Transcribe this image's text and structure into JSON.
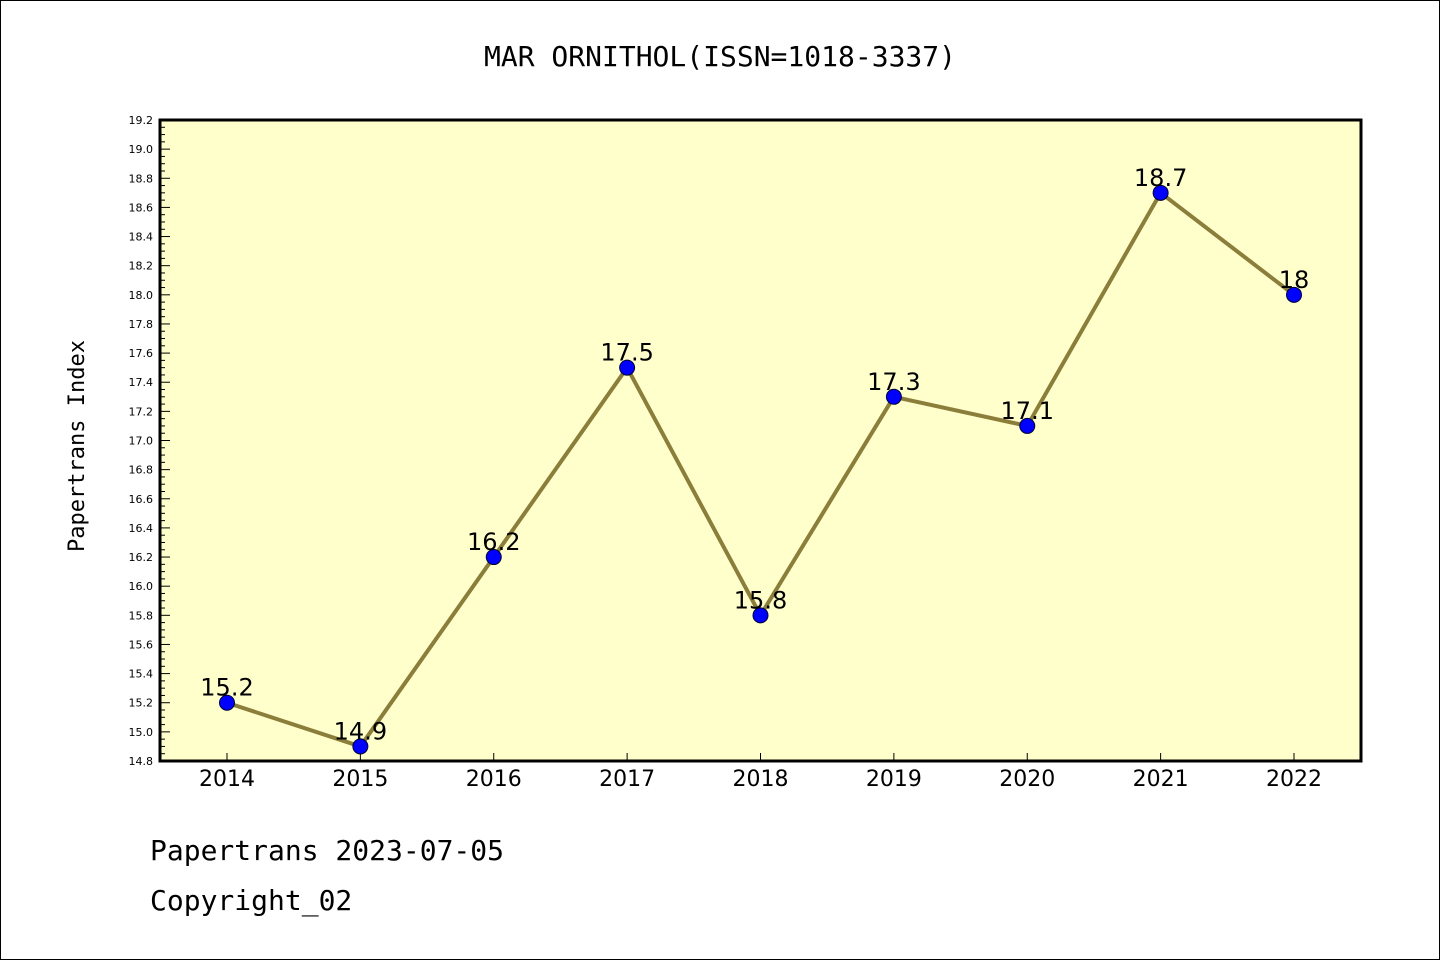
{
  "chart_data": {
    "type": "line",
    "title": "MAR ORNITHOL(ISSN=1018-3337)",
    "xlabel": "",
    "ylabel": "Papertrans Index",
    "categories": [
      "2014",
      "2015",
      "2016",
      "2017",
      "2018",
      "2019",
      "2020",
      "2021",
      "2022"
    ],
    "values": [
      15.2,
      14.9,
      16.2,
      17.5,
      15.8,
      17.3,
      17.1,
      18.7,
      18
    ],
    "data_labels": [
      "15.2",
      "14.9",
      "16.2",
      "17.5",
      "15.8",
      "17.3",
      "17.1",
      "18.7",
      "18"
    ],
    "ylim": [
      14.8,
      19.2
    ],
    "yticks": [
      "14.8",
      "15.0",
      "15.2",
      "15.4",
      "15.6",
      "15.8",
      "16.0",
      "16.2",
      "16.4",
      "16.6",
      "16.8",
      "17.0",
      "17.2",
      "17.4",
      "17.6",
      "17.8",
      "18.0",
      "18.2",
      "18.4",
      "18.6",
      "18.8",
      "19.0",
      "19.2"
    ],
    "grid": false,
    "legend": "none",
    "colors": {
      "plot_background": "#ffffcc",
      "line": "#8b7d3a",
      "marker": "#0000ff"
    }
  },
  "footer": {
    "date_line": "Papertrans 2023-07-05",
    "copyright": "Copyright_02"
  }
}
